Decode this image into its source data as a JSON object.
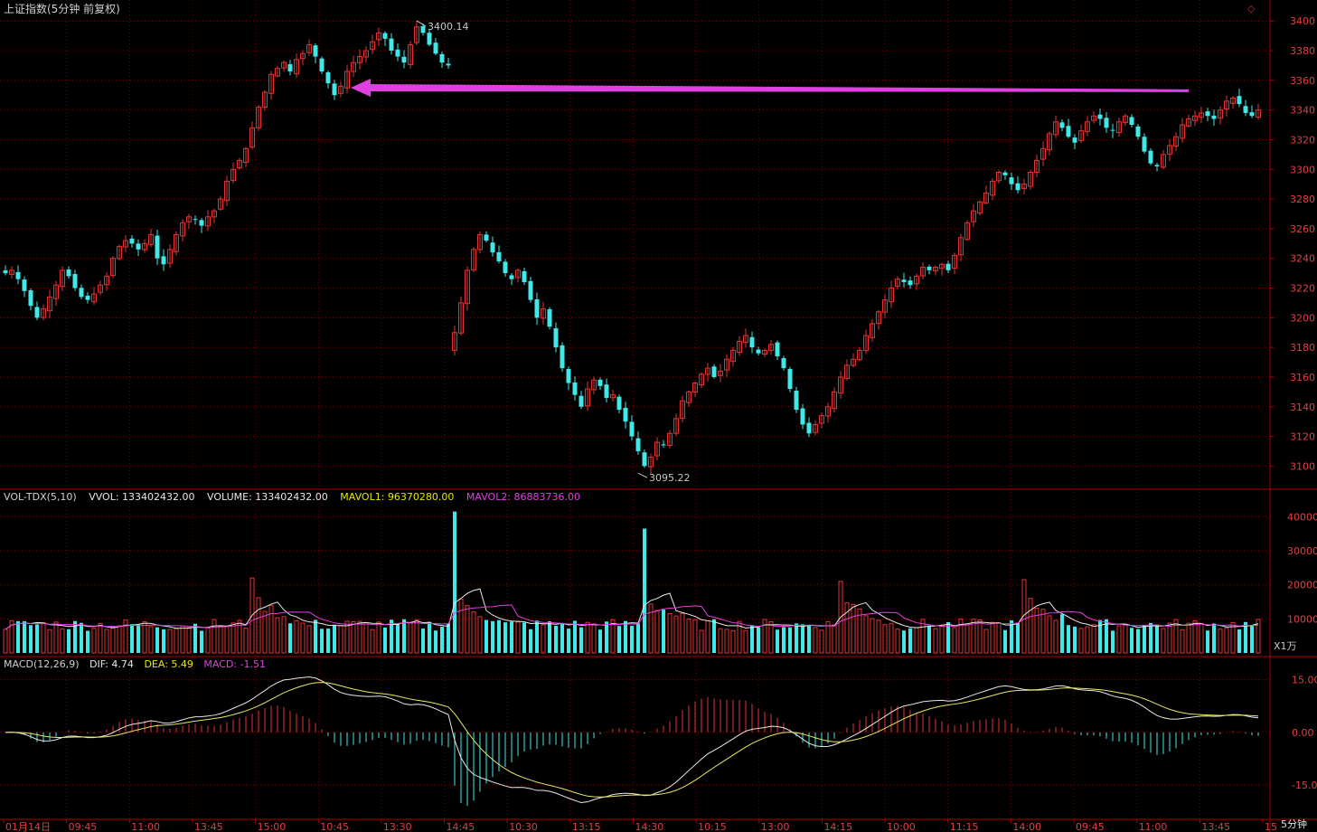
{
  "header": {
    "title": "上证指数(5分钟 前复权)",
    "corner_icon": "diamond-outline-icon"
  },
  "price_panel": {
    "y_ticks": [
      "3400",
      "3380",
      "3360",
      "3340",
      "3320",
      "3300",
      "3280",
      "3260",
      "3240",
      "3220",
      "3200",
      "3180",
      "3160",
      "3140",
      "3120",
      "3100"
    ],
    "high_label": "3400.14",
    "low_label": "3095.22",
    "arrow_color": "#e040e0"
  },
  "volume_panel": {
    "indicator": "VOL-TDX(5,10)",
    "vvol": "VVOL: 133402432.00",
    "volume": "VOLUME: 133402432.00",
    "mavol1": "MAVOL1: 96370280.00",
    "mavol2": "MAVOL2: 86883736.00",
    "y_ticks": [
      "40000",
      "30000",
      "20000",
      "10000"
    ],
    "unit": "X1万"
  },
  "macd_panel": {
    "indicator": "MACD(12,26,9)",
    "dif": "DIF: 4.74",
    "dea": "DEA: 5.49",
    "macd": "MACD: -1.51",
    "y_ticks": [
      "15.00",
      "0.00",
      "-15.00"
    ]
  },
  "x_axis": {
    "labels": [
      "01月14日",
      "09:45",
      "11:00",
      "13:45",
      "15:00",
      "10:45",
      "13:30",
      "14:45",
      "10:30",
      "13:15",
      "14:30",
      "10:15",
      "13:00",
      "14:15",
      "10:00",
      "11:15",
      "14:00",
      "09:45",
      "11:00",
      "13:45",
      "15"
    ],
    "period": "5分钟"
  },
  "colors": {
    "up": "#e03434",
    "down": "#40e8e8",
    "grid": "#7a0000",
    "axis": "#b00000",
    "ma1": "#e8e8e8",
    "ma2": "#e040e0",
    "dea_line": "#e8e860"
  },
  "chart_data": [
    {
      "type": "candlestick",
      "title": "上证指数(5分钟 前复权)",
      "ylim": [
        3085,
        3405
      ],
      "annotations": [
        {
          "text": "3400.14",
          "value": 3400.14,
          "kind": "high"
        },
        {
          "text": "3095.22",
          "value": 3095.22,
          "kind": "low"
        },
        {
          "kind": "arrow",
          "from_value": 3353,
          "to_value": 3355,
          "color": "#e040e0"
        }
      ],
      "close_path": [
        3230,
        3232,
        3226,
        3218,
        3208,
        3200,
        3206,
        3214,
        3222,
        3232,
        3228,
        3220,
        3214,
        3212,
        3216,
        3222,
        3228,
        3240,
        3248,
        3252,
        3250,
        3246,
        3250,
        3256,
        3240,
        3236,
        3246,
        3256,
        3264,
        3268,
        3266,
        3262,
        3268,
        3272,
        3280,
        3292,
        3300,
        3306,
        3314,
        3328,
        3342,
        3352,
        3364,
        3368,
        3372,
        3366,
        3374,
        3378,
        3384,
        3376,
        3366,
        3358,
        3350,
        3356,
        3366,
        3372,
        3376,
        3380,
        3386,
        3392,
        3388,
        3380,
        3376,
        3372,
        3384,
        3396,
        3392,
        3384,
        3378,
        3372,
        3370,
        3190,
        3210,
        3232,
        3246,
        3256,
        3252,
        3244,
        3238,
        3230,
        3226,
        3232,
        3224,
        3212,
        3200,
        3206,
        3194,
        3180,
        3166,
        3156,
        3148,
        3140,
        3152,
        3158,
        3154,
        3146,
        3148,
        3138,
        3130,
        3120,
        3110,
        3100,
        3106,
        3116,
        3114,
        3122,
        3132,
        3144,
        3150,
        3156,
        3162,
        3166,
        3160,
        3164,
        3172,
        3178,
        3184,
        3188,
        3180,
        3176,
        3178,
        3182,
        3174,
        3166,
        3152,
        3138,
        3128,
        3122,
        3128,
        3134,
        3140,
        3150,
        3160,
        3168,
        3172,
        3178,
        3188,
        3196,
        3204,
        3212,
        3220,
        3226,
        3224,
        3222,
        3228,
        3234,
        3232,
        3234,
        3236,
        3232,
        3242,
        3254,
        3264,
        3272,
        3278,
        3284,
        3292,
        3298,
        3296,
        3290,
        3286,
        3290,
        3298,
        3306,
        3314,
        3324,
        3332,
        3328,
        3322,
        3318,
        3326,
        3332,
        3336,
        3334,
        3328,
        3326,
        3332,
        3336,
        3330,
        3322,
        3312,
        3304,
        3302,
        3310,
        3316,
        3322,
        3330,
        3334,
        3336,
        3338,
        3336,
        3334,
        3340,
        3346,
        3348,
        3344,
        3338,
        3336,
        3340
      ]
    },
    {
      "type": "bar",
      "title": "VOL-TDX(5,10)",
      "ylabel": "X1万",
      "ylim": [
        0,
        43000
      ],
      "series": [
        {
          "name": "VVOL",
          "value": 133402432.0
        },
        {
          "name": "MAVOL1",
          "value": 96370280.0
        },
        {
          "name": "MAVOL2",
          "value": 86883736.0
        }
      ],
      "peaks": [
        {
          "index": 71,
          "value": 41500
        },
        {
          "index": 101,
          "value": 36500
        },
        {
          "index": 39,
          "value": 22000
        },
        {
          "index": 132,
          "value": 21000
        },
        {
          "index": 161,
          "value": 21500
        }
      ],
      "baseline": 6500
    },
    {
      "type": "bar",
      "title": "MACD(12,26,9)",
      "ylim": [
        -24,
        18
      ],
      "series": [
        {
          "name": "DIF",
          "value": 4.74
        },
        {
          "name": "DEA",
          "value": 5.49
        },
        {
          "name": "MACD",
          "value": -1.51
        }
      ],
      "bar_profile": [
        {
          "from": 0,
          "to": 7,
          "value": -5
        },
        {
          "from": 8,
          "to": 22,
          "value": 4
        },
        {
          "from": 23,
          "to": 30,
          "value": 1
        },
        {
          "from": 31,
          "to": 46,
          "value": 4
        },
        {
          "from": 47,
          "to": 70,
          "value": -3
        },
        {
          "from": 71,
          "to": 80,
          "value": -20
        },
        {
          "from": 81,
          "to": 95,
          "value": -2
        },
        {
          "from": 96,
          "to": 110,
          "value": 9
        },
        {
          "from": 111,
          "to": 120,
          "value": 3
        },
        {
          "from": 121,
          "to": 130,
          "value": -9
        },
        {
          "from": 131,
          "to": 143,
          "value": 6
        },
        {
          "from": 144,
          "to": 160,
          "value": 3
        },
        {
          "from": 161,
          "to": 175,
          "value": -4
        },
        {
          "from": 176,
          "to": 192,
          "value": -1
        }
      ]
    }
  ]
}
